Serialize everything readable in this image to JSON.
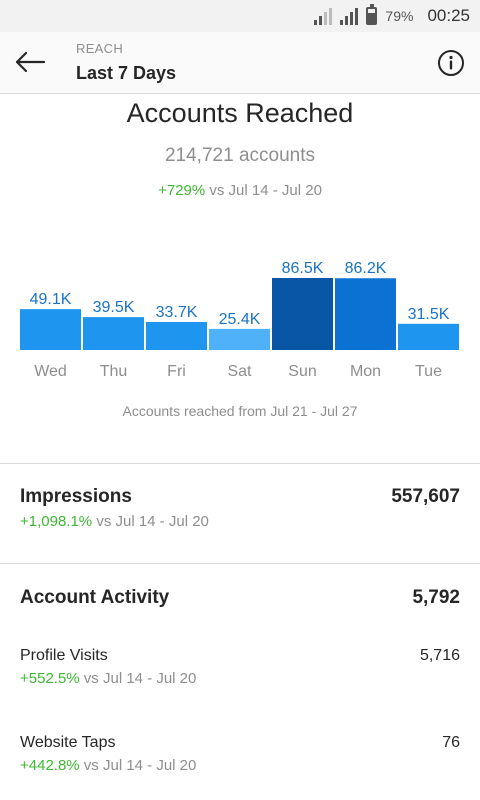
{
  "status_bar": {
    "battery": "79%",
    "time": "00:25"
  },
  "header": {
    "eyebrow": "REACH",
    "title": "Last 7 Days"
  },
  "reach": {
    "title": "Accounts Reached",
    "count": "214,721 accounts",
    "change": "+729%",
    "compare_text": " vs Jul 14 - Jul 20",
    "footnote": "Accounts reached from Jul 21 - Jul 27"
  },
  "chart_data": {
    "type": "bar",
    "categories": [
      "Wed",
      "Thu",
      "Fri",
      "Sat",
      "Sun",
      "Mon",
      "Tue"
    ],
    "values": [
      49.1,
      39.5,
      33.7,
      25.4,
      86.5,
      86.2,
      31.5
    ],
    "value_labels": [
      "49.1K",
      "39.5K",
      "33.7K",
      "25.4K",
      "86.5K",
      "86.2K",
      "31.5K"
    ],
    "colors": [
      "#1e96f0",
      "#1e96f0",
      "#1e96f0",
      "#4fb1f8",
      "#0a56a6",
      "#0b72d3",
      "#1e96f0"
    ],
    "label_color": "#1a73c7",
    "ylim": [
      0,
      86.5
    ]
  },
  "impressions": {
    "label": "Impressions",
    "value": "557,607",
    "change": "+1,098.1%",
    "compare_text": " vs Jul 14 - Jul 20"
  },
  "account_activity": {
    "label": "Account Activity",
    "value": "5,792",
    "items": [
      {
        "label": "Profile Visits",
        "value": "5,716",
        "change": "+552.5%",
        "compare_text": " vs Jul 14 - Jul 20"
      },
      {
        "label": "Website Taps",
        "value": "76",
        "change": "+442.8%",
        "compare_text": " vs Jul 14 - Jul 20"
      }
    ]
  },
  "colors": {
    "positive": "#3db832",
    "muted": "#8e8e8e",
    "text": "#262626"
  }
}
